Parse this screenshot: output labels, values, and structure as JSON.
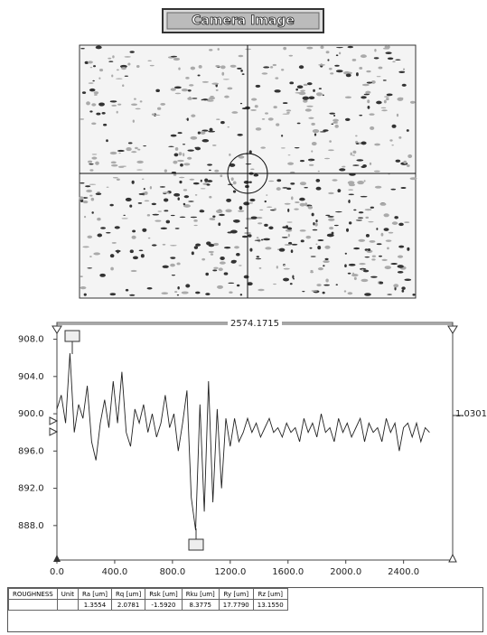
{
  "panel": {
    "title": "Camera Image"
  },
  "chart_data": {
    "type": "line",
    "color": "#222222",
    "x": [
      0,
      30,
      60,
      90,
      120,
      150,
      180,
      210,
      240,
      270,
      300,
      330,
      360,
      390,
      420,
      450,
      480,
      510,
      540,
      570,
      600,
      630,
      660,
      690,
      720,
      750,
      780,
      810,
      840,
      870,
      900,
      930,
      960,
      990,
      1020,
      1050,
      1080,
      1110,
      1140,
      1170,
      1200,
      1230,
      1260,
      1290,
      1320,
      1350,
      1380,
      1410,
      1440,
      1470,
      1500,
      1530,
      1560,
      1590,
      1620,
      1650,
      1680,
      1710,
      1740,
      1770,
      1800,
      1830,
      1860,
      1890,
      1920,
      1950,
      1980,
      2010,
      2040,
      2070,
      2100,
      2130,
      2160,
      2190,
      2220,
      2250,
      2280,
      2310,
      2340,
      2370,
      2400,
      2430,
      2460,
      2490,
      2520,
      2550,
      2580
    ],
    "values": [
      900.5,
      902,
      899,
      906.5,
      898,
      901,
      899.5,
      903,
      897,
      895,
      899,
      901.5,
      898.5,
      903.5,
      899,
      904.5,
      898,
      896.5,
      900.5,
      899,
      901,
      898,
      900,
      897.5,
      899,
      902,
      898.5,
      900,
      896,
      899,
      902.5,
      891,
      887.5,
      901,
      889.5,
      903.5,
      890.5,
      900.5,
      892,
      899.5,
      896.5,
      899.5,
      897,
      898,
      899.5,
      898,
      899,
      897.5,
      898.5,
      899.5,
      898,
      898.5,
      897.5,
      899,
      898,
      898.5,
      897,
      899.5,
      898,
      899,
      897.5,
      900,
      898,
      898.5,
      897,
      899.5,
      898,
      899,
      897.5,
      898.5,
      899.5,
      897,
      899,
      898,
      898.5,
      897,
      899.5,
      898,
      899,
      896,
      898.5,
      899,
      897.5,
      899,
      897,
      898.5,
      898
    ],
    "xlim": [
      0,
      2740
    ],
    "ylim": [
      884.3,
      909.8
    ],
    "xticks": [
      {
        "value": 0,
        "label": "0.0"
      },
      {
        "value": 400,
        "label": "400.0"
      },
      {
        "value": 800,
        "label": "800.0"
      },
      {
        "value": 1200,
        "label": "1200.0"
      },
      {
        "value": 1600,
        "label": "1600.0"
      },
      {
        "value": 2000,
        "label": "2000.0"
      },
      {
        "value": 2400,
        "label": "2400.0"
      }
    ],
    "yticks": [
      {
        "value": 888,
        "label": "888.0"
      },
      {
        "value": 892,
        "label": "892.0"
      },
      {
        "value": 896,
        "label": "896.0"
      },
      {
        "value": 900,
        "label": "900.0"
      },
      {
        "value": 904,
        "label": "904.0"
      },
      {
        "value": 908,
        "label": "908.0"
      }
    ],
    "annotations": [
      "2574.1715",
      "1.0301"
    ]
  },
  "table": {
    "header": [
      "ROUGHNESS",
      "Unit",
      "Ra [um]",
      "Rq [um]",
      "Rsk [um]",
      "Rku [um]",
      "Ry [um]",
      "Rz [um]"
    ],
    "rows": [
      [
        "1.3554",
        "2.0781",
        "-1.5920",
        "8.3775",
        "17.7790",
        "13.1550"
      ]
    ]
  }
}
